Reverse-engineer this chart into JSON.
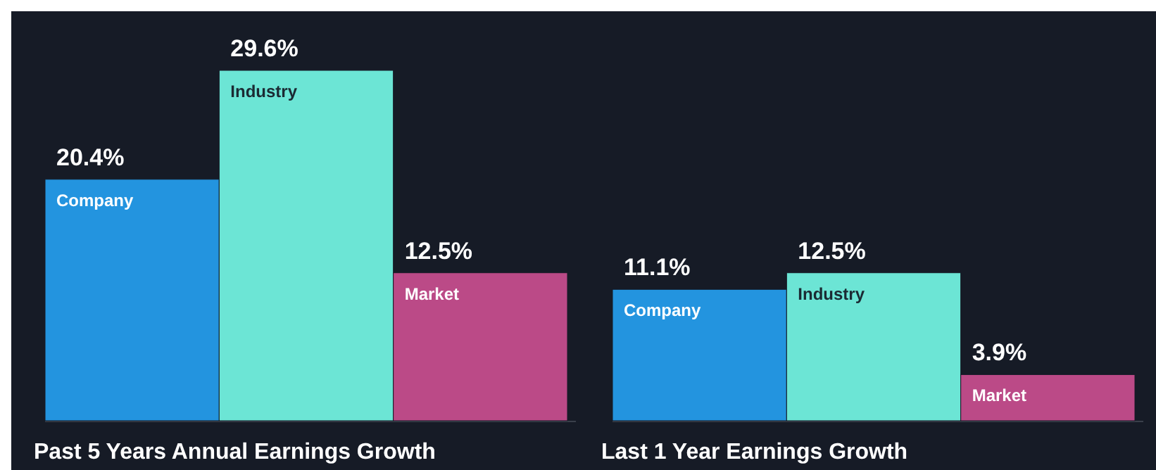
{
  "chart_data": [
    {
      "type": "bar",
      "xlabel": "Past 5 Years Annual Earnings Growth",
      "categories": [
        "Company",
        "Industry",
        "Market"
      ],
      "values": [
        20.4,
        29.6,
        12.5
      ],
      "colors": [
        "#2394df",
        "#6ce5d5",
        "#bb4a87"
      ],
      "value_labels": [
        "20.4%",
        "29.6%",
        "12.5%"
      ]
    },
    {
      "type": "bar",
      "xlabel": "Last 1 Year Earnings Growth",
      "categories": [
        "Company",
        "Industry",
        "Market"
      ],
      "values": [
        11.1,
        12.5,
        3.9
      ],
      "colors": [
        "#2394df",
        "#6ce5d5",
        "#bb4a87"
      ],
      "value_labels": [
        "11.1%",
        "12.5%",
        "3.9%"
      ]
    }
  ]
}
